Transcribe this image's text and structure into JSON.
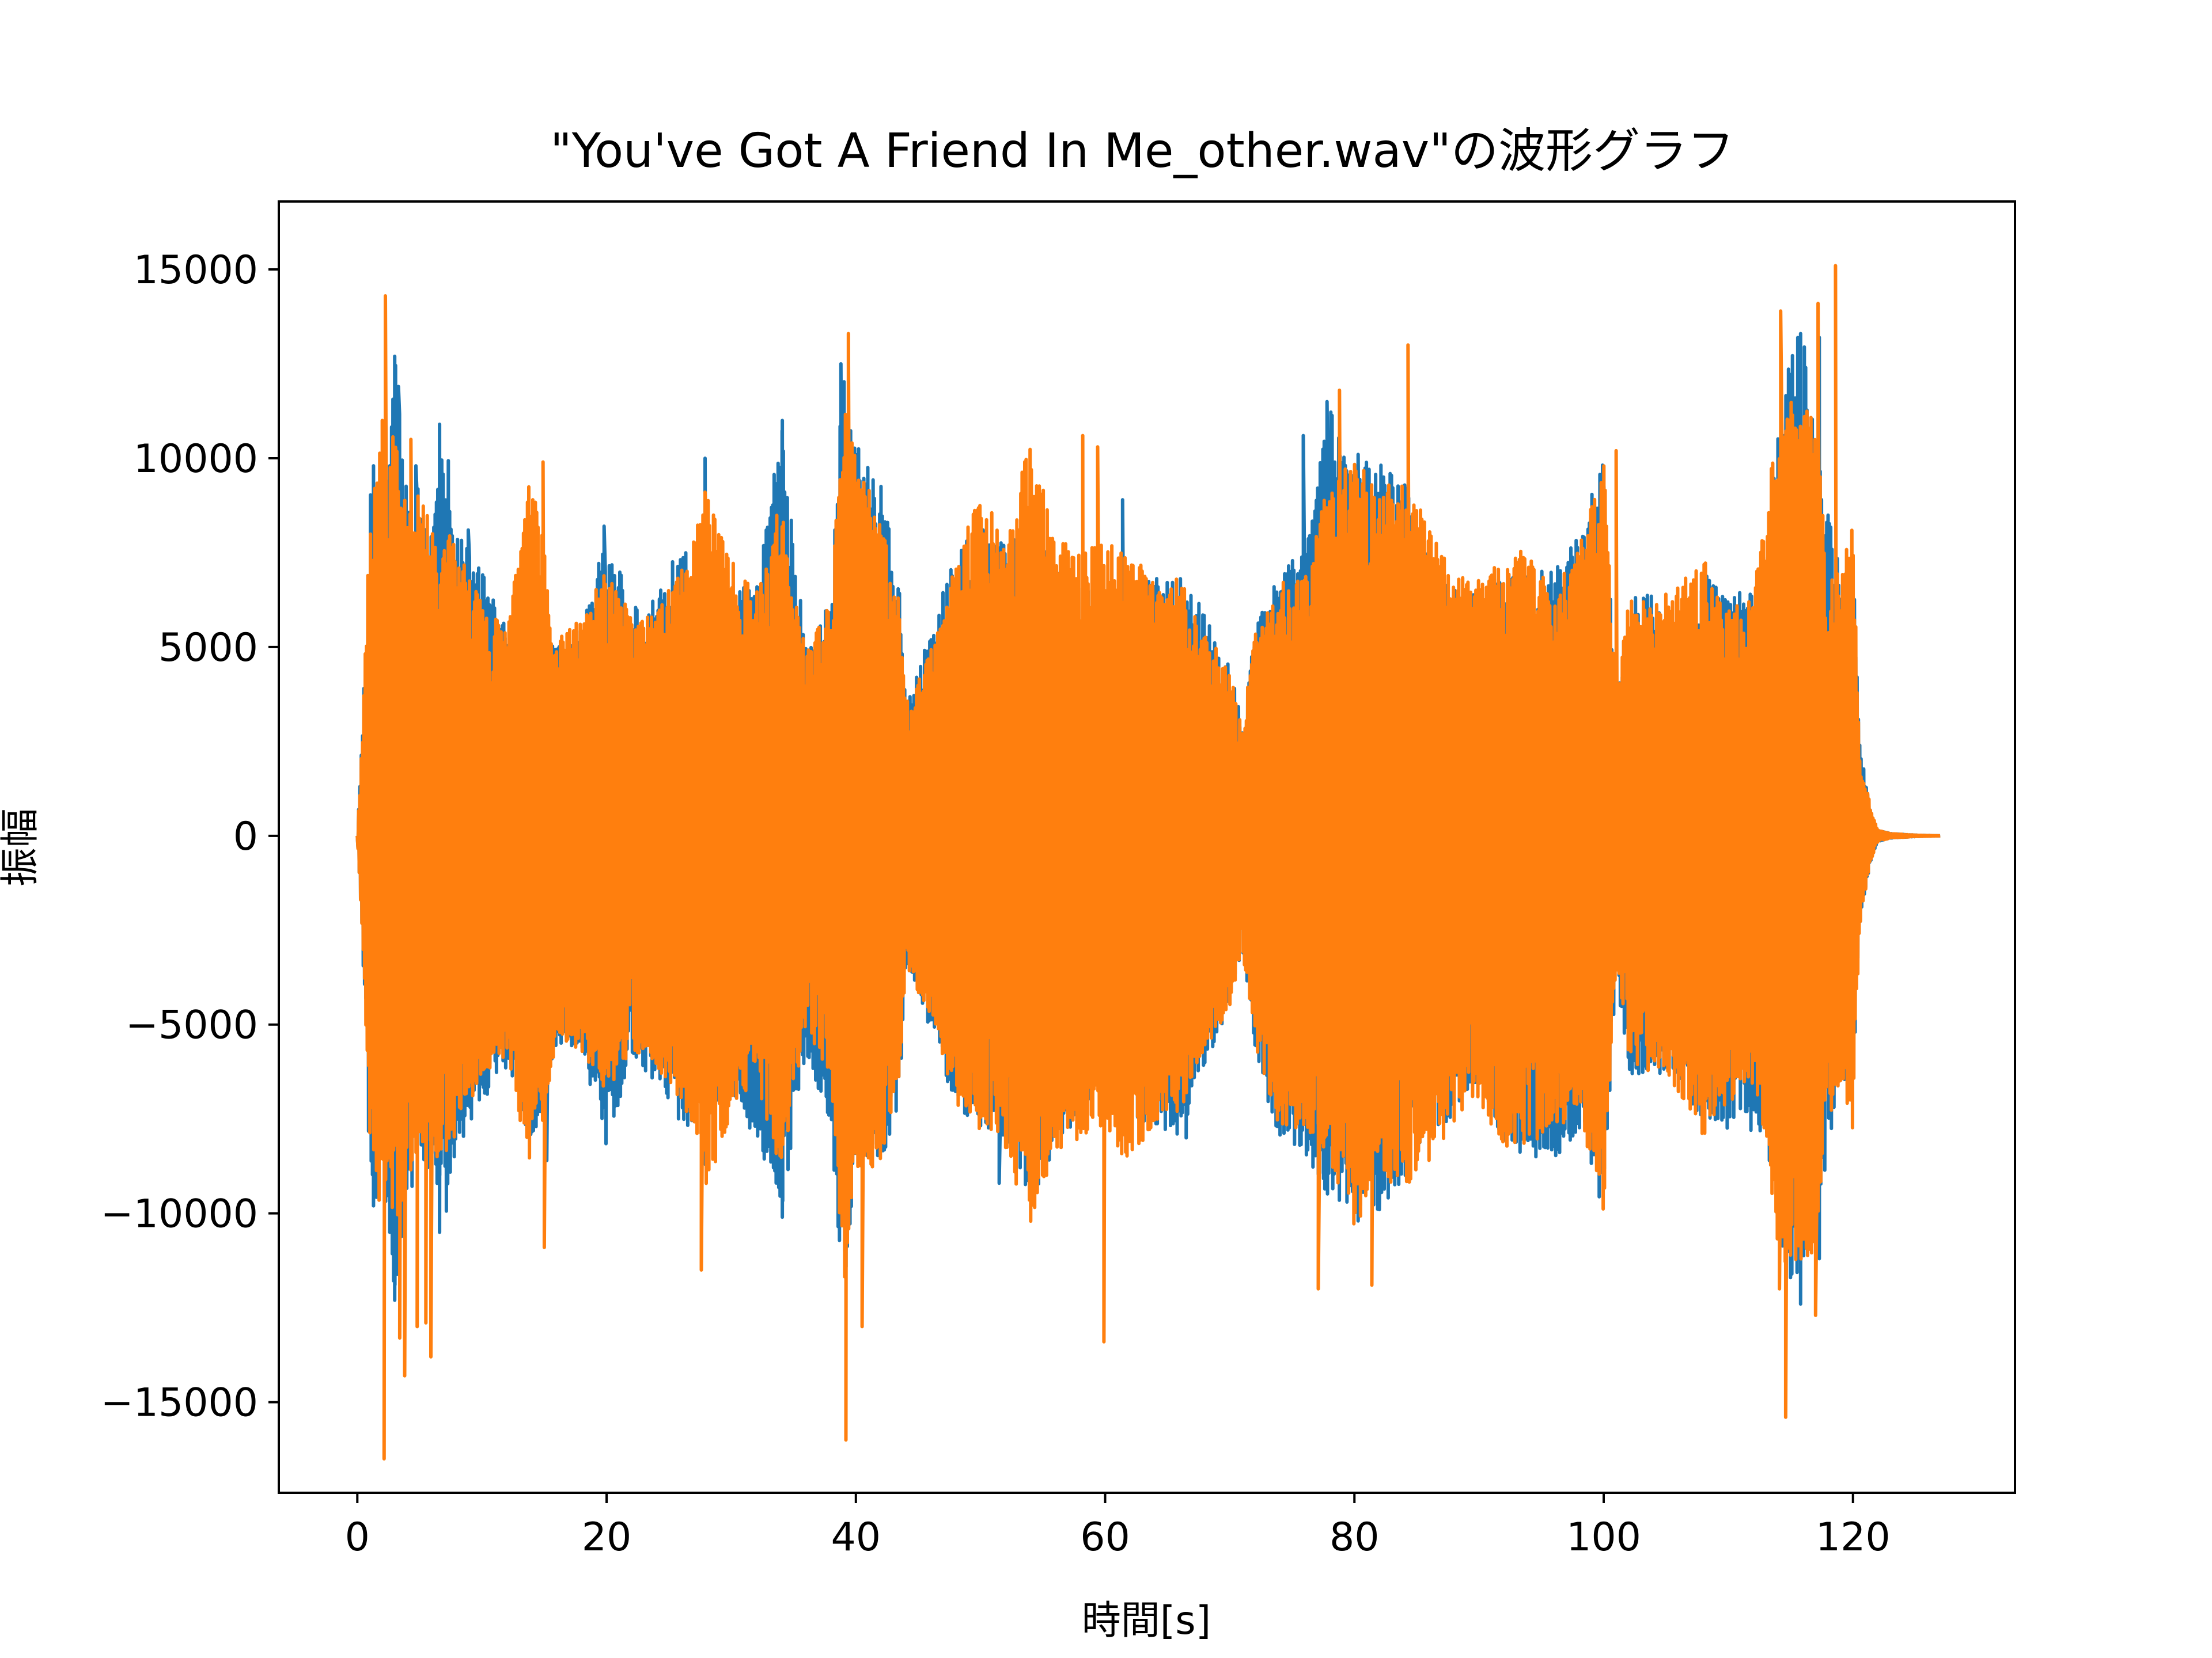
{
  "chart_data": {
    "type": "line",
    "title": "\"You've Got A Friend In Me_other.wav\"の波形グラフ",
    "xlabel": "時間[s]",
    "ylabel": "振幅",
    "xlim": [
      -6.3,
      133
    ],
    "ylim": [
      -17400,
      16800
    ],
    "xticks": [
      0,
      20,
      40,
      60,
      80,
      100,
      120
    ],
    "xtick_labels": [
      "0",
      "20",
      "40",
      "60",
      "80",
      "100",
      "120"
    ],
    "yticks": [
      15000,
      10000,
      5000,
      0,
      -5000,
      -10000,
      -15000
    ],
    "ytick_labels": [
      "15000",
      "10000",
      "5000",
      "0",
      "−5000",
      "−10000",
      "−15000"
    ],
    "grid": false,
    "legend": "none",
    "duration_s": 127,
    "series": [
      {
        "color": "#1f77b4",
        "envelope": {
          "t": [
            0,
            0.3,
            0.6,
            1,
            1.5,
            2,
            2.5,
            3,
            4,
            5,
            6,
            7,
            8,
            10,
            12,
            14,
            16,
            18,
            20,
            22,
            24,
            26,
            28,
            30,
            32,
            34,
            36,
            38,
            39,
            40,
            42,
            43.5,
            44,
            46,
            48,
            50,
            52,
            54,
            56,
            58,
            60,
            62,
            64,
            66,
            68,
            70,
            71,
            72,
            74,
            76,
            78,
            80,
            82,
            84,
            86,
            88,
            90,
            92,
            94,
            96,
            98,
            100,
            101,
            102,
            104,
            106,
            108,
            110,
            112,
            113,
            114,
            115,
            116,
            117,
            118,
            119,
            120,
            120.5,
            121,
            121.5,
            122,
            123,
            125,
            127
          ],
          "max": [
            0,
            2000,
            4500,
            9000,
            9800,
            9500,
            9800,
            12700,
            9200,
            10000,
            8000,
            10900,
            8100,
            7000,
            5500,
            6200,
            5000,
            5500,
            8200,
            6000,
            6400,
            7800,
            6300,
            6800,
            6500,
            11000,
            5000,
            6300,
            12500,
            10500,
            9300,
            6600,
            3500,
            5400,
            7700,
            8100,
            7800,
            8900,
            7000,
            6800,
            6900,
            6800,
            6800,
            7000,
            5900,
            4500,
            3000,
            5400,
            7200,
            7500,
            11500,
            10100,
            9900,
            9500,
            7200,
            6500,
            6400,
            6900,
            7000,
            7100,
            8000,
            10000,
            3500,
            6300,
            6400,
            5100,
            7000,
            6300,
            6700,
            7300,
            10600,
            13300,
            13200,
            10700,
            8600,
            7500,
            7600,
            2500,
            1500,
            600,
            150,
            60,
            20,
            0
          ],
          "min": [
            0,
            -2000,
            -4500,
            -9000,
            -9800,
            -9500,
            -10500,
            -12300,
            -10000,
            -8500,
            -9000,
            -10500,
            -8200,
            -7300,
            -6100,
            -8300,
            -5500,
            -5700,
            -8300,
            -5800,
            -6600,
            -7800,
            -7800,
            -6700,
            -8100,
            -10100,
            -5700,
            -7700,
            -12500,
            -8300,
            -8700,
            -7100,
            -3500,
            -5200,
            -7200,
            -7700,
            -8000,
            -9600,
            -8600,
            -7200,
            -6800,
            -7400,
            -7700,
            -8000,
            -6100,
            -4500,
            -3000,
            -5600,
            -8300,
            -8500,
            -9700,
            -10200,
            -9900,
            -9200,
            -7900,
            -7500,
            -6600,
            -8200,
            -8500,
            -8700,
            -7800,
            -10000,
            -3500,
            -6500,
            -6300,
            -6500,
            -7600,
            -7800,
            -7800,
            -7900,
            -10300,
            -12400,
            -11200,
            -10500,
            -8300,
            -6300,
            -7100,
            -2500,
            -1500,
            -600,
            -150,
            -60,
            -20,
            0
          ]
        },
        "spikes": [
          {
            "t": 1.3,
            "v": 9800
          },
          {
            "t": 2.6,
            "v": 9800
          },
          {
            "t": 3.0,
            "v": 12700
          },
          {
            "t": 3.3,
            "v": 11900
          },
          {
            "t": 4.7,
            "v": 9800
          },
          {
            "t": 6.6,
            "v": 10900
          },
          {
            "t": 8.9,
            "v": 8100
          },
          {
            "t": 19.8,
            "v": 8200
          },
          {
            "t": 27.9,
            "v": 10000
          },
          {
            "t": 34.1,
            "v": 11000
          },
          {
            "t": 38.8,
            "v": 12500
          },
          {
            "t": 50.2,
            "v": 8100
          },
          {
            "t": 61.4,
            "v": 8900
          },
          {
            "t": 75.9,
            "v": 10600
          },
          {
            "t": 77.8,
            "v": 11500
          },
          {
            "t": 80.3,
            "v": 10100
          },
          {
            "t": 114.5,
            "v": 10600
          },
          {
            "t": 115.8,
            "v": 13300
          },
          {
            "t": 117.3,
            "v": 13200
          },
          {
            "t": 1.3,
            "v": -9800
          },
          {
            "t": 2.6,
            "v": -10500
          },
          {
            "t": 3.0,
            "v": -12300
          },
          {
            "t": 6.6,
            "v": -10500
          },
          {
            "t": 15.2,
            "v": -8600
          },
          {
            "t": 27.9,
            "v": -8700
          },
          {
            "t": 34.1,
            "v": -10100
          },
          {
            "t": 51.5,
            "v": -9200
          },
          {
            "t": 66.5,
            "v": -8000
          },
          {
            "t": 79.4,
            "v": -9700
          },
          {
            "t": 80.3,
            "v": -10200
          },
          {
            "t": 82.0,
            "v": -9900
          },
          {
            "t": 115.8,
            "v": -12400
          },
          {
            "t": 117.3,
            "v": -11200
          }
        ]
      },
      {
        "color": "#ff7f0e",
        "envelope": {
          "t": [
            0,
            0.3,
            0.6,
            1,
            1.5,
            2,
            2.5,
            3,
            4,
            5,
            6,
            7,
            8,
            10,
            12,
            14,
            16,
            18,
            20,
            22,
            24,
            26,
            28,
            30,
            32,
            34,
            36,
            38,
            39,
            40,
            42,
            43.5,
            44,
            46,
            48,
            50,
            52,
            54,
            56,
            58,
            60,
            62,
            64,
            66,
            68,
            70,
            71,
            72,
            74,
            76,
            78,
            80,
            82,
            84,
            86,
            88,
            90,
            92,
            94,
            96,
            98,
            100,
            101,
            102,
            104,
            106,
            108,
            110,
            112,
            113,
            114,
            115,
            116,
            117,
            118,
            119,
            120,
            120.5,
            121,
            121.5,
            122,
            123,
            125,
            127
          ],
          "max": [
            0,
            2000,
            4500,
            8500,
            9000,
            11000,
            9500,
            11200,
            8500,
            9300,
            8200,
            8300,
            7600,
            6200,
            5400,
            9900,
            5200,
            5800,
            7100,
            5800,
            6100,
            7000,
            9100,
            7300,
            6400,
            9000,
            4900,
            6200,
            11500,
            10200,
            8300,
            6500,
            3500,
            4900,
            7300,
            9200,
            8000,
            10600,
            7800,
            7700,
            7800,
            7400,
            7100,
            6800,
            5400,
            4500,
            3000,
            5300,
            6700,
            6800,
            9500,
            10100,
            9100,
            9600,
            8200,
            6900,
            6900,
            7400,
            7600,
            6500,
            7600,
            10200,
            3500,
            6400,
            6200,
            6600,
            7400,
            6000,
            6300,
            9000,
            10600,
            11500,
            11500,
            11000,
            7700,
            7000,
            8400,
            2500,
            1500,
            600,
            150,
            60,
            20,
            0
          ],
          "min": [
            0,
            -2000,
            -4500,
            -8500,
            -9000,
            -11000,
            -9500,
            -11000,
            -9500,
            -8100,
            -8600,
            -8500,
            -8000,
            -6300,
            -5900,
            -9300,
            -5400,
            -5700,
            -6800,
            -5700,
            -6300,
            -7000,
            -9700,
            -7300,
            -6400,
            -9000,
            -5000,
            -6500,
            -12000,
            -9000,
            -8700,
            -6400,
            -3500,
            -4800,
            -7100,
            -7800,
            -8600,
            -10400,
            -8500,
            -8100,
            -7900,
            -8700,
            -7800,
            -7300,
            -5800,
            -4500,
            -3000,
            -5500,
            -7800,
            -7800,
            -8500,
            -10600,
            -9000,
            -9400,
            -8600,
            -7600,
            -7000,
            -8400,
            -8100,
            -7900,
            -7300,
            -10200,
            -3500,
            -6100,
            -6300,
            -6800,
            -8000,
            -7000,
            -6900,
            -8000,
            -11200,
            -11500,
            -11200,
            -11200,
            -7600,
            -6500,
            -8300,
            -2500,
            -1500,
            -600,
            -150,
            -60,
            -20,
            0
          ]
        },
        "spikes": [
          {
            "t": 1.4,
            "v": 9200
          },
          {
            "t": 2.0,
            "v": 11000
          },
          {
            "t": 2.25,
            "v": 14300
          },
          {
            "t": 4.3,
            "v": 10500
          },
          {
            "t": 14.9,
            "v": 9900
          },
          {
            "t": 27.9,
            "v": 9100
          },
          {
            "t": 39.4,
            "v": 13300
          },
          {
            "t": 58.2,
            "v": 10600
          },
          {
            "t": 59.4,
            "v": 10300
          },
          {
            "t": 78.8,
            "v": 11800
          },
          {
            "t": 84.3,
            "v": 13000
          },
          {
            "t": 101.0,
            "v": 10200
          },
          {
            "t": 114.2,
            "v": 13900
          },
          {
            "t": 117.2,
            "v": 14100
          },
          {
            "t": 118.6,
            "v": 15100
          },
          {
            "t": 2.15,
            "v": -16500
          },
          {
            "t": 3.4,
            "v": -13300
          },
          {
            "t": 3.8,
            "v": -14300
          },
          {
            "t": 4.8,
            "v": -13000
          },
          {
            "t": 5.5,
            "v": -12900
          },
          {
            "t": 5.9,
            "v": -13800
          },
          {
            "t": 15.0,
            "v": -10900
          },
          {
            "t": 27.6,
            "v": -11500
          },
          {
            "t": 39.2,
            "v": -16000
          },
          {
            "t": 40.5,
            "v": -13000
          },
          {
            "t": 59.9,
            "v": -13400
          },
          {
            "t": 77.1,
            "v": -12000
          },
          {
            "t": 81.4,
            "v": -11900
          },
          {
            "t": 114.6,
            "v": -15400
          },
          {
            "t": 114.1,
            "v": -12000
          },
          {
            "t": 117.0,
            "v": -12700
          }
        ]
      }
    ]
  }
}
